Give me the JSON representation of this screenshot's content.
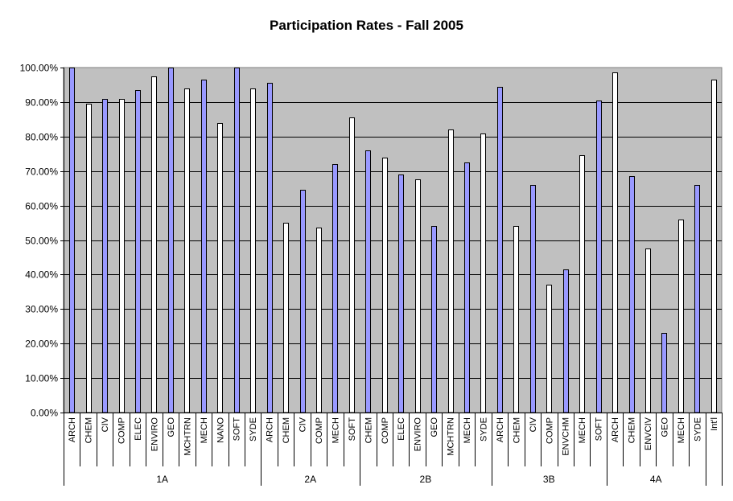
{
  "chart_data": {
    "type": "bar",
    "title": "Participation Rates - Fall 2005",
    "xlabel": "",
    "ylabel": "",
    "ylim": [
      0,
      100
    ],
    "y_ticks": [
      "0.00%",
      "10.00%",
      "20.00%",
      "30.00%",
      "40.00%",
      "50.00%",
      "60.00%",
      "70.00%",
      "80.00%",
      "90.00%",
      "100.00%"
    ],
    "grid": true,
    "legend": "none",
    "colors": {
      "plot_bg": "#c0c0c0",
      "bar_blue": "#9999ff",
      "bar_white": "#ffffff",
      "bar_stroke": "#000000"
    },
    "groups": [
      {
        "label": "1A",
        "bars": [
          {
            "category": "ARCH",
            "value": 100.0,
            "color": "blue"
          },
          {
            "category": "CHEM",
            "value": 89.5,
            "color": "white"
          },
          {
            "category": "CIV",
            "value": 91.0,
            "color": "blue"
          },
          {
            "category": "COMP",
            "value": 91.0,
            "color": "white"
          },
          {
            "category": "ELEC",
            "value": 93.5,
            "color": "blue"
          },
          {
            "category": "ENVIRO",
            "value": 97.5,
            "color": "white"
          },
          {
            "category": "GEO",
            "value": 100.0,
            "color": "blue"
          },
          {
            "category": "MCHTRN",
            "value": 94.0,
            "color": "white"
          },
          {
            "category": "MECH",
            "value": 96.5,
            "color": "blue"
          },
          {
            "category": "NANO",
            "value": 84.0,
            "color": "white"
          },
          {
            "category": "SOFT",
            "value": 100.0,
            "color": "blue"
          },
          {
            "category": "SYDE",
            "value": 94.0,
            "color": "white"
          }
        ]
      },
      {
        "label": "2A",
        "bars": [
          {
            "category": "ARCH",
            "value": 95.5,
            "color": "blue"
          },
          {
            "category": "CHEM",
            "value": 55.0,
            "color": "white"
          },
          {
            "category": "CIV",
            "value": 64.5,
            "color": "blue"
          },
          {
            "category": "COMP",
            "value": 53.5,
            "color": "white"
          },
          {
            "category": "MECH",
            "value": 72.0,
            "color": "blue"
          },
          {
            "category": "SOFT",
            "value": 85.5,
            "color": "white"
          }
        ]
      },
      {
        "label": "2B",
        "bars": [
          {
            "category": "CHEM",
            "value": 76.0,
            "color": "blue"
          },
          {
            "category": "COMP",
            "value": 74.0,
            "color": "white"
          },
          {
            "category": "ELEC",
            "value": 69.0,
            "color": "blue"
          },
          {
            "category": "ENVIRO",
            "value": 67.5,
            "color": "white"
          },
          {
            "category": "GEO",
            "value": 54.0,
            "color": "blue"
          },
          {
            "category": "MCHTRN",
            "value": 82.0,
            "color": "white"
          },
          {
            "category": "MECH",
            "value": 72.5,
            "color": "blue"
          },
          {
            "category": "SYDE",
            "value": 81.0,
            "color": "white"
          }
        ]
      },
      {
        "label": "3B",
        "bars": [
          {
            "category": "ARCH",
            "value": 94.5,
            "color": "blue"
          },
          {
            "category": "CHEM",
            "value": 54.0,
            "color": "white"
          },
          {
            "category": "CIV",
            "value": 66.0,
            "color": "blue"
          },
          {
            "category": "COMP",
            "value": 37.0,
            "color": "white"
          },
          {
            "category": "ENVCHM",
            "value": 41.5,
            "color": "blue"
          },
          {
            "category": "MECH",
            "value": 74.5,
            "color": "white"
          },
          {
            "category": "SOFT",
            "value": 90.5,
            "color": "blue"
          }
        ]
      },
      {
        "label": "4A",
        "bars": [
          {
            "category": "ARCH",
            "value": 98.5,
            "color": "white"
          },
          {
            "category": "CHEM",
            "value": 68.5,
            "color": "blue"
          },
          {
            "category": "ENVCIV",
            "value": 47.5,
            "color": "white"
          },
          {
            "category": "GEO",
            "value": 23.0,
            "color": "blue"
          },
          {
            "category": "MECH",
            "value": 56.0,
            "color": "white"
          },
          {
            "category": "SYDE",
            "value": 66.0,
            "color": "blue"
          }
        ]
      },
      {
        "label": "",
        "bars": [
          {
            "category": "Int'l",
            "value": 96.5,
            "color": "white"
          }
        ]
      }
    ]
  }
}
